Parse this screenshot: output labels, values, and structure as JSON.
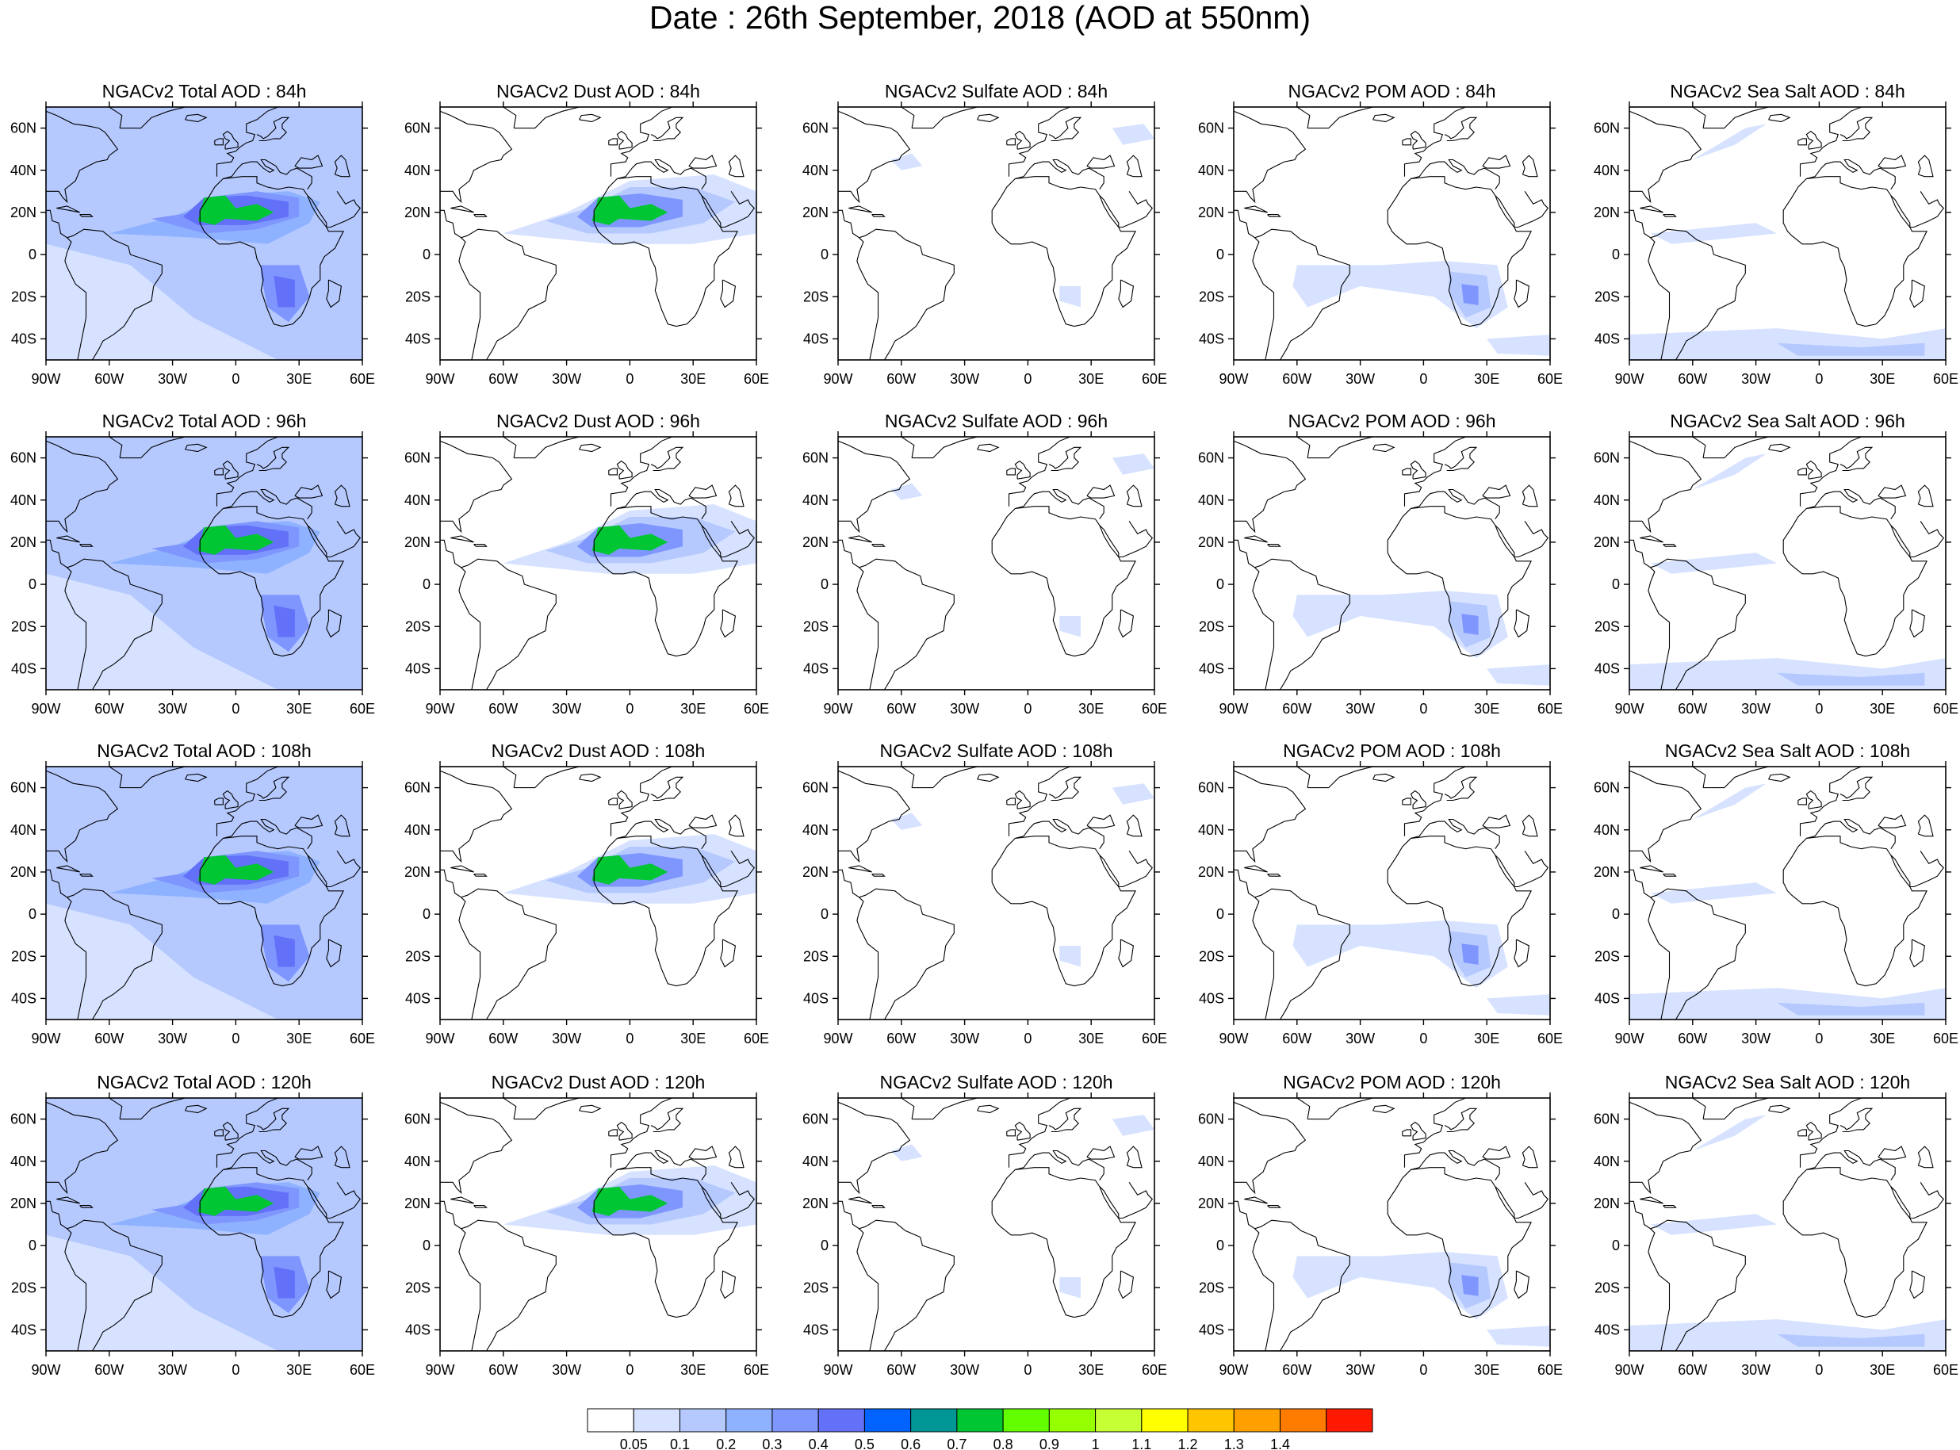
{
  "title": "Date : 26th September, 2018 (AOD at 550nm)",
  "map_extent": {
    "lon": [
      -90,
      60
    ],
    "lat": [
      -50,
      70
    ]
  },
  "lon_ticks": [
    {
      "value": -90,
      "label": "90W"
    },
    {
      "value": -60,
      "label": "60W"
    },
    {
      "value": -30,
      "label": "30W"
    },
    {
      "value": 0,
      "label": "0"
    },
    {
      "value": 30,
      "label": "30E"
    },
    {
      "value": 60,
      "label": "60E"
    }
  ],
  "lat_ticks": [
    {
      "value": 60,
      "label": "60N"
    },
    {
      "value": 40,
      "label": "40N"
    },
    {
      "value": 20,
      "label": "20N"
    },
    {
      "value": 0,
      "label": "0"
    },
    {
      "value": -20,
      "label": "20S"
    },
    {
      "value": -40,
      "label": "40S"
    }
  ],
  "species": [
    "Total",
    "Dust",
    "Sulfate",
    "POM",
    "Sea Salt"
  ],
  "forecast_hours": [
    "84h",
    "96h",
    "108h",
    "120h"
  ],
  "panels": [
    [
      "NGACv2 Total AOD : 84h",
      "NGACv2 Dust AOD : 84h",
      "NGACv2 Sulfate AOD : 84h",
      "NGACv2 POM AOD : 84h",
      "NGACv2 Sea Salt AOD : 84h"
    ],
    [
      "NGACv2 Total AOD : 96h",
      "NGACv2 Dust AOD : 96h",
      "NGACv2 Sulfate AOD : 96h",
      "NGACv2 POM AOD : 96h",
      "NGACv2 Sea Salt AOD : 96h"
    ],
    [
      "NGACv2 Total AOD : 108h",
      "NGACv2 Dust AOD : 108h",
      "NGACv2 Sulfate AOD : 108h",
      "NGACv2 POM AOD : 108h",
      "NGACv2 Sea Salt AOD : 108h"
    ],
    [
      "NGACv2 Total AOD : 120h",
      "NGACv2 Dust AOD : 120h",
      "NGACv2 Sulfate AOD : 120h",
      "NGACv2 POM AOD : 120h",
      "NGACv2 Sea Salt  AOD : 120h"
    ]
  ],
  "colorbar": {
    "colors": [
      "#ffffff",
      "#d6e2ff",
      "#b5c9ff",
      "#8eb2ff",
      "#7f96ff",
      "#6370f8",
      "#0063ff",
      "#009696",
      "#00c633",
      "#63ff00",
      "#96ff00",
      "#c6ff33",
      "#ffff00",
      "#ffc600",
      "#ffa000",
      "#ff7c00",
      "#ff1900"
    ],
    "labels": [
      "0.05",
      "0.1",
      "0.2",
      "0.3",
      "0.4",
      "0.5",
      "0.6",
      "0.7",
      "0.8",
      "0.9",
      "1",
      "1.1",
      "1.2",
      "1.3",
      "1.4"
    ]
  }
}
